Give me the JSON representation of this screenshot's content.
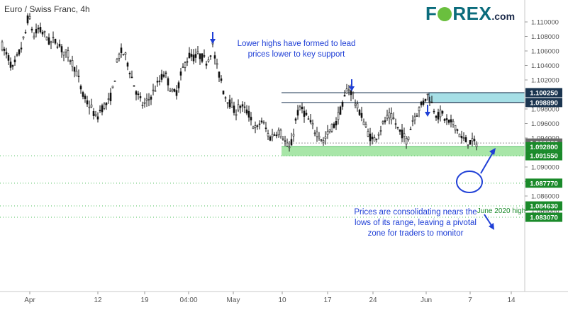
{
  "title": "Euro / Swiss Franc, 4h",
  "brand": {
    "left": "F",
    "right": "REX",
    "suffix": ".com"
  },
  "colors": {
    "candle": "#111111",
    "support_zone": "#a8e6a8",
    "resistance_zone": "#a6dfe6",
    "annotation": "#1f3fd6",
    "level_green": "#1a8a2a",
    "level_navy": "#1b3550",
    "level_gray": "#6a6a6a",
    "dotted_line": "#4bbf5a"
  },
  "annotations": {
    "top": "Lower highs have formed to lead\nprices lower to key support",
    "bottom": "Prices are consolidating nears the\nlows of its range, leaving a pivotal\nzone for traders to monitor",
    "june_high": "June 2020 high"
  },
  "chart_data": {
    "type": "candlestick",
    "title": "Euro / Swiss Franc, 4h",
    "x_ticks": [
      "Apr",
      "12",
      "19",
      "04:00",
      "May",
      "10",
      "17",
      "24",
      "Jun",
      "7",
      "14"
    ],
    "y_ticks": [
      "1.110000",
      "1.108000",
      "1.106000",
      "1.104000",
      "1.102000",
      "1.098000",
      "1.096000",
      "1.094000",
      "1.090000",
      "1.088000",
      "1.086000",
      "1.084000"
    ],
    "ylim": [
      1.0825,
      1.1125
    ],
    "levels": [
      {
        "value": 1.10025,
        "label": "1.100250",
        "style": "navy"
      },
      {
        "value": 1.09889,
        "label": "1.098890",
        "style": "navy"
      },
      {
        "value": 1.0933,
        "label": "1.093300",
        "style": "gray"
      },
      {
        "value": 1.0928,
        "label": "1.092800",
        "style": "green"
      },
      {
        "value": 1.09155,
        "label": "1.091550",
        "style": "green"
      },
      {
        "value": 1.08777,
        "label": "1.087770",
        "style": "green"
      },
      {
        "value": 1.08463,
        "label": "1.084630",
        "style": "green"
      },
      {
        "value": 1.08307,
        "label": "1.083070",
        "style": "green"
      }
    ],
    "zones": [
      {
        "name": "support",
        "from": 1.0915,
        "to": 1.0928
      },
      {
        "name": "resistance",
        "from": 1.09889,
        "to": 1.10025
      }
    ],
    "path": [
      [
        0,
        1.1075
      ],
      [
        6,
        1.106
      ],
      [
        12,
        1.105
      ],
      [
        18,
        1.1035
      ],
      [
        24,
        1.105
      ],
      [
        30,
        1.1065
      ],
      [
        36,
        1.1085
      ],
      [
        40,
        1.111
      ],
      [
        44,
        1.1095
      ],
      [
        48,
        1.108
      ],
      [
        54,
        1.109
      ],
      [
        60,
        1.1085
      ],
      [
        66,
        1.108
      ],
      [
        70,
        1.107
      ],
      [
        76,
        1.1075
      ],
      [
        82,
        1.107
      ],
      [
        88,
        1.106
      ],
      [
        96,
        1.1055
      ],
      [
        104,
        1.104
      ],
      [
        110,
        1.1025
      ],
      [
        116,
        1.1
      ],
      [
        122,
        1.099
      ],
      [
        130,
        1.098
      ],
      [
        136,
        1.0965
      ],
      [
        142,
        1.098
      ],
      [
        148,
        1.0985
      ],
      [
        154,
        1.099
      ],
      [
        160,
        1.101
      ],
      [
        166,
        1.105
      ],
      [
        172,
        1.106
      ],
      [
        178,
        1.105
      ],
      [
        184,
        1.103
      ],
      [
        190,
        1.101
      ],
      [
        196,
        1.0995
      ],
      [
        202,
        1.0985
      ],
      [
        208,
        1.099
      ],
      [
        214,
        1.1
      ],
      [
        220,
        1.101
      ],
      [
        226,
        1.102
      ],
      [
        232,
        1.103
      ],
      [
        238,
        1.1015
      ],
      [
        244,
        1.1
      ],
      [
        250,
        1.1005
      ],
      [
        256,
        1.103
      ],
      [
        262,
        1.1045
      ],
      [
        268,
        1.1055
      ],
      [
        274,
        1.105
      ],
      [
        280,
        1.1055
      ],
      [
        286,
        1.105
      ],
      [
        292,
        1.1045
      ],
      [
        296,
        1.1055
      ],
      [
        300,
        1.107
      ],
      [
        304,
        1.1045
      ],
      [
        308,
        1.103
      ],
      [
        312,
        1.102
      ],
      [
        316,
        1.1
      ],
      [
        320,
        1.0995
      ],
      [
        326,
        1.0985
      ],
      [
        332,
        1.0975
      ],
      [
        338,
        1.0985
      ],
      [
        344,
        1.098
      ],
      [
        350,
        1.0975
      ],
      [
        356,
        1.096
      ],
      [
        362,
        1.095
      ],
      [
        368,
        1.0965
      ],
      [
        374,
        1.0955
      ],
      [
        380,
        1.094
      ],
      [
        386,
        1.0945
      ],
      [
        392,
        1.095
      ],
      [
        398,
        1.0945
      ],
      [
        404,
        1.093
      ],
      [
        408,
        1.0925
      ],
      [
        412,
        1.0935
      ],
      [
        416,
        1.096
      ],
      [
        420,
        1.0975
      ],
      [
        426,
        1.098
      ],
      [
        432,
        1.097
      ],
      [
        438,
        1.096
      ],
      [
        444,
        1.095
      ],
      [
        450,
        1.0945
      ],
      [
        456,
        1.0935
      ],
      [
        462,
        1.0945
      ],
      [
        468,
        1.0955
      ],
      [
        474,
        1.096
      ],
      [
        478,
        1.0975
      ],
      [
        482,
        1.098
      ],
      [
        486,
        1.0995
      ],
      [
        490,
        1.101
      ],
      [
        494,
        1.1005
      ],
      [
        498,
        1.1
      ],
      [
        502,
        1.0985
      ],
      [
        508,
        1.0975
      ],
      [
        514,
        1.096
      ],
      [
        520,
        1.0945
      ],
      [
        526,
        1.0935
      ],
      [
        532,
        1.0945
      ],
      [
        538,
        1.0955
      ],
      [
        544,
        1.0965
      ],
      [
        550,
        1.097
      ],
      [
        556,
        1.0965
      ],
      [
        562,
        1.095
      ],
      [
        568,
        1.0945
      ],
      [
        574,
        1.0935
      ],
      [
        578,
        1.095
      ],
      [
        582,
        1.0965
      ],
      [
        588,
        1.0975
      ],
      [
        594,
        1.0985
      ],
      [
        598,
        1.099
      ],
      [
        602,
        1.1
      ],
      [
        606,
        1.0995
      ],
      [
        610,
        1.0985
      ],
      [
        614,
        1.0975
      ],
      [
        618,
        1.097
      ],
      [
        622,
        1.0975
      ],
      [
        628,
        1.0965
      ],
      [
        634,
        1.096
      ],
      [
        640,
        1.096
      ],
      [
        646,
        1.095
      ],
      [
        650,
        1.094
      ],
      [
        656,
        1.0936
      ],
      [
        662,
        1.0935
      ],
      [
        668,
        1.0933
      ],
      [
        673,
        1.0933
      ]
    ]
  }
}
